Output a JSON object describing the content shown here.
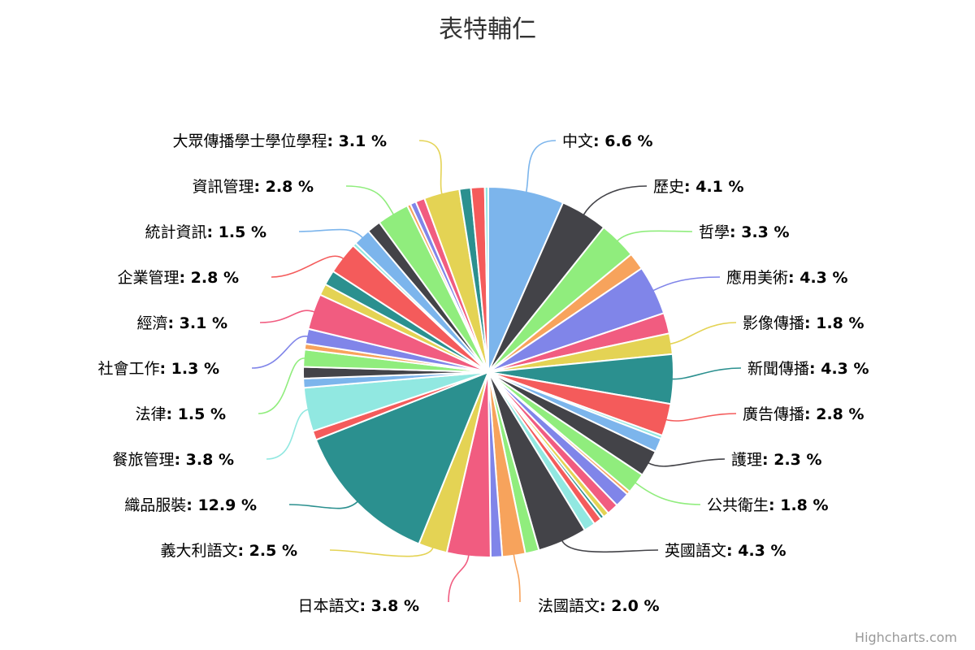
{
  "chart_data": {
    "type": "pie",
    "title": "表特輔仁",
    "unit": "%",
    "slices": [
      {
        "name": "中文",
        "value": 6.6,
        "color": "#7cb5ec",
        "label": "中文: 6.6 %"
      },
      {
        "name": "歷史",
        "value": 4.1,
        "color": "#434348",
        "label": "歷史: 4.1 %"
      },
      {
        "name": "哲學",
        "value": 3.3,
        "color": "#90ed7d",
        "label": "哲學: 3.3 %"
      },
      {
        "name": "",
        "value": 1.5,
        "color": "#f7a35c"
      },
      {
        "name": "應用美術",
        "value": 4.3,
        "color": "#8085e9",
        "label": "應用美術: 4.3 %"
      },
      {
        "name": "",
        "value": 1.8,
        "color": "#f15c80"
      },
      {
        "name": "影像傳播",
        "value": 1.8,
        "color": "#e4d354",
        "label": "影像傳播: 1.8 %"
      },
      {
        "name": "新聞傳播",
        "value": 4.3,
        "color": "#2b908f",
        "label": "新聞傳播: 4.3 %"
      },
      {
        "name": "廣告傳播",
        "value": 2.8,
        "color": "#f45b5b",
        "label": "廣告傳播: 2.8 %"
      },
      {
        "name": "",
        "value": 0.3,
        "color": "#91e8e1"
      },
      {
        "name": "",
        "value": 1.2,
        "color": "#7cb5ec"
      },
      {
        "name": "護理",
        "value": 2.3,
        "color": "#434348",
        "label": "護理: 2.3 %"
      },
      {
        "name": "公共衛生",
        "value": 1.8,
        "color": "#90ed7d",
        "label": "公共衛生: 1.8 %"
      },
      {
        "name": "",
        "value": 0.3,
        "color": "#f7a35c"
      },
      {
        "name": "",
        "value": 1.3,
        "color": "#8085e9"
      },
      {
        "name": "",
        "value": 1.0,
        "color": "#f15c80"
      },
      {
        "name": "",
        "value": 0.5,
        "color": "#e4d354"
      },
      {
        "name": "",
        "value": 0.3,
        "color": "#2b908f"
      },
      {
        "name": "",
        "value": 0.7,
        "color": "#f45b5b"
      },
      {
        "name": "",
        "value": 1.0,
        "color": "#91e8e1"
      },
      {
        "name": "英國語文",
        "value": 4.3,
        "color": "#434348",
        "label": "英國語文: 4.3 %"
      },
      {
        "name": "",
        "value": 1.2,
        "color": "#90ed7d"
      },
      {
        "name": "法國語文",
        "value": 2.0,
        "color": "#f7a35c",
        "label": "法國語文: 2.0 %"
      },
      {
        "name": "",
        "value": 1.0,
        "color": "#8085e9"
      },
      {
        "name": "日本語文",
        "value": 3.8,
        "color": "#f15c80",
        "label": "日本語文: 3.8 %"
      },
      {
        "name": "義大利語文",
        "value": 2.5,
        "color": "#e4d354",
        "label": "義大利語文: 2.5 %"
      },
      {
        "name": "織品服裝",
        "value": 12.9,
        "color": "#2b908f",
        "label": "織品服裝: 12.9 %"
      },
      {
        "name": "",
        "value": 0.8,
        "color": "#f45b5b"
      },
      {
        "name": "餐旅管理",
        "value": 3.8,
        "color": "#91e8e1",
        "label": "餐旅管理: 3.8 %"
      },
      {
        "name": "",
        "value": 0.8,
        "color": "#7cb5ec"
      },
      {
        "name": "",
        "value": 1.0,
        "color": "#434348"
      },
      {
        "name": "法律",
        "value": 1.5,
        "color": "#90ed7d",
        "label": "法律: 1.5 %"
      },
      {
        "name": "",
        "value": 0.5,
        "color": "#f7a35c"
      },
      {
        "name": "社會工作",
        "value": 1.3,
        "color": "#8085e9",
        "label": "社會工作: 1.3 %"
      },
      {
        "name": "經濟",
        "value": 3.1,
        "color": "#f15c80",
        "label": "經濟: 3.1 %"
      },
      {
        "name": "",
        "value": 1.0,
        "color": "#e4d354"
      },
      {
        "name": "",
        "value": 1.3,
        "color": "#2b908f"
      },
      {
        "name": "企業管理",
        "value": 2.8,
        "color": "#f45b5b",
        "label": "企業管理: 2.8 %"
      },
      {
        "name": "",
        "value": 0.3,
        "color": "#91e8e1"
      },
      {
        "name": "統計資訊",
        "value": 1.5,
        "color": "#7cb5ec",
        "label": "統計資訊: 1.5 %"
      },
      {
        "name": "",
        "value": 1.2,
        "color": "#434348"
      },
      {
        "name": "資訊管理",
        "value": 2.8,
        "color": "#90ed7d",
        "label": "資訊管理: 2.8 %"
      },
      {
        "name": "",
        "value": 0.3,
        "color": "#f7a35c"
      },
      {
        "name": "",
        "value": 0.5,
        "color": "#8085e9"
      },
      {
        "name": "",
        "value": 0.8,
        "color": "#f15c80"
      },
      {
        "name": "大眾傳播學士學位學程",
        "value": 3.1,
        "color": "#e4d354",
        "label": "大眾傳播學士學位學程: 3.1 %"
      },
      {
        "name": "",
        "value": 1.0,
        "color": "#2b908f"
      },
      {
        "name": "",
        "value": 1.2,
        "color": "#f45b5b"
      },
      {
        "name": "",
        "value": 0.3,
        "color": "#91e8e1"
      }
    ]
  },
  "credits": "Highcharts.com"
}
